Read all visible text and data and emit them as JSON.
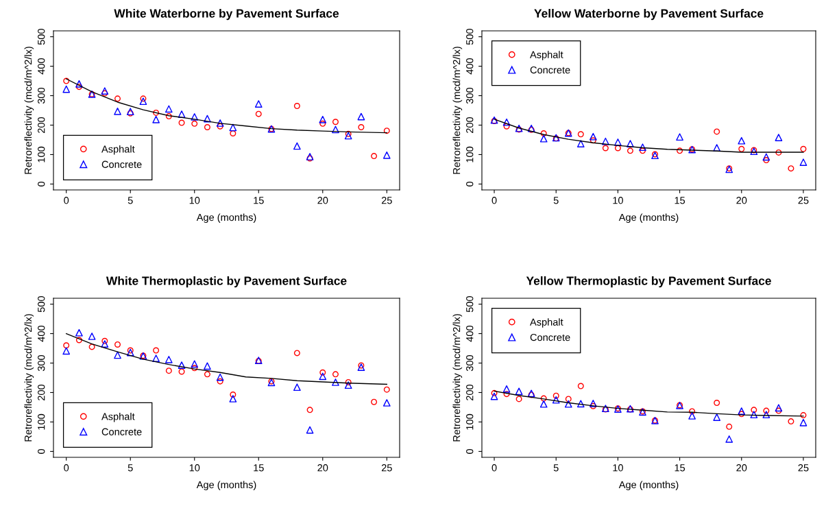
{
  "chart_data": [
    {
      "type": "scatter",
      "title": "White Waterborne by Pavement Surface",
      "xlabel": "Age (months)",
      "ylabel": "Retroreflectivity (mcd/m^2/lx)",
      "xlim": [
        -1,
        26
      ],
      "ylim": [
        -20,
        520
      ],
      "xticks": [
        0,
        5,
        10,
        15,
        20,
        25
      ],
      "yticks": [
        0,
        100,
        200,
        300,
        400,
        500
      ],
      "grid": false,
      "legend": "bottom left",
      "series": [
        {
          "name": "Asphalt",
          "marker": "circle",
          "color": "#ff0000",
          "x": [
            0,
            1,
            2,
            3,
            4,
            5,
            6,
            7,
            8,
            9,
            10,
            11,
            12,
            13,
            15,
            16,
            18,
            19,
            20,
            21,
            22,
            23,
            24,
            25
          ],
          "values": [
            350,
            330,
            305,
            308,
            290,
            240,
            290,
            242,
            230,
            208,
            205,
            193,
            196,
            172,
            238,
            187,
            265,
            87,
            205,
            211,
            170,
            193,
            95,
            181
          ]
        },
        {
          "name": "Concrete",
          "marker": "triangle",
          "color": "#0000ff",
          "x": [
            0,
            1,
            2,
            3,
            4,
            5,
            6,
            7,
            8,
            9,
            10,
            11,
            12,
            13,
            15,
            16,
            18,
            19,
            20,
            21,
            22,
            23,
            25
          ],
          "values": [
            322,
            340,
            305,
            316,
            247,
            246,
            281,
            219,
            255,
            237,
            228,
            222,
            207,
            192,
            272,
            187,
            129,
            93,
            219,
            185,
            164,
            229,
            98
          ]
        },
        {
          "type": "line",
          "marker": "none",
          "line_style": "solid",
          "color": "#000000",
          "x": [
            0,
            2,
            4,
            6,
            8,
            10,
            12,
            14,
            16,
            18,
            20,
            22,
            25
          ],
          "values": [
            357,
            313,
            278,
            252,
            232,
            220,
            206,
            197,
            188,
            183,
            180,
            177,
            174
          ]
        }
      ]
    },
    {
      "type": "scatter",
      "title": "Yellow Waterborne by Pavement Surface",
      "xlabel": "Age (months)",
      "ylabel": "Retroreflectivity (mcd/m^2/lx)",
      "xlim": [
        -1,
        26
      ],
      "ylim": [
        -20,
        520
      ],
      "xticks": [
        0,
        5,
        10,
        15,
        20,
        25
      ],
      "yticks": [
        0,
        100,
        200,
        300,
        400,
        500
      ],
      "grid": false,
      "legend": "top left",
      "series": [
        {
          "name": "Asphalt",
          "marker": "circle",
          "color": "#ff0000",
          "x": [
            0,
            1,
            2,
            3,
            4,
            5,
            6,
            7,
            8,
            9,
            10,
            11,
            12,
            13,
            15,
            16,
            18,
            19,
            20,
            21,
            22,
            23,
            24,
            25
          ],
          "values": [
            214,
            196,
            185,
            184,
            172,
            155,
            173,
            169,
            148,
            122,
            122,
            113,
            113,
            101,
            113,
            118,
            178,
            53,
            119,
            115,
            81,
            107,
            53,
            119
          ]
        },
        {
          "name": "Concrete",
          "marker": "triangle",
          "color": "#0000ff",
          "x": [
            0,
            1,
            2,
            3,
            4,
            5,
            6,
            7,
            8,
            9,
            10,
            11,
            12,
            13,
            15,
            16,
            18,
            19,
            20,
            21,
            22,
            23,
            25
          ],
          "values": [
            217,
            210,
            189,
            189,
            154,
            157,
            173,
            137,
            161,
            145,
            142,
            137,
            125,
            97,
            160,
            117,
            123,
            50,
            147,
            111,
            92,
            158,
            74
          ]
        },
        {
          "type": "line",
          "marker": "none",
          "line_style": "solid",
          "color": "#000000",
          "x": [
            0,
            2,
            4,
            6,
            8,
            10,
            12,
            14,
            16,
            18,
            20,
            22,
            25
          ],
          "values": [
            220,
            190,
            168,
            152,
            140,
            131,
            123,
            118,
            115,
            112,
            108,
            108,
            108
          ]
        }
      ]
    },
    {
      "type": "scatter",
      "title": "White Thermoplastic by Pavement Surface",
      "xlabel": "Age (months)",
      "ylabel": "Retroreflectivity (mcd/m^2/lx)",
      "xlim": [
        -1,
        26
      ],
      "ylim": [
        -20,
        520
      ],
      "xticks": [
        0,
        5,
        10,
        15,
        20,
        25
      ],
      "yticks": [
        0,
        100,
        200,
        300,
        400,
        500
      ],
      "grid": false,
      "legend": "bottom left",
      "series": [
        {
          "name": "Asphalt",
          "marker": "circle",
          "color": "#ff0000",
          "x": [
            0,
            1,
            2,
            3,
            4,
            5,
            6,
            7,
            8,
            9,
            10,
            11,
            12,
            13,
            15,
            16,
            18,
            19,
            20,
            21,
            22,
            23,
            24,
            25
          ],
          "values": [
            360,
            378,
            355,
            375,
            363,
            343,
            325,
            343,
            274,
            271,
            283,
            262,
            238,
            193,
            307,
            238,
            334,
            141,
            268,
            262,
            235,
            292,
            168,
            210
          ]
        },
        {
          "name": "Concrete",
          "marker": "triangle",
          "color": "#0000ff",
          "x": [
            0,
            1,
            2,
            3,
            4,
            5,
            6,
            7,
            8,
            9,
            10,
            11,
            12,
            13,
            15,
            16,
            18,
            19,
            20,
            21,
            22,
            23,
            25
          ],
          "values": [
            341,
            403,
            391,
            365,
            327,
            336,
            324,
            316,
            312,
            293,
            297,
            290,
            252,
            179,
            309,
            234,
            218,
            73,
            255,
            235,
            225,
            286,
            165
          ]
        },
        {
          "type": "line",
          "marker": "none",
          "line_style": "solid",
          "color": "#000000",
          "x": [
            0,
            2,
            4,
            6,
            8,
            10,
            12,
            14,
            16,
            18,
            20,
            22,
            25
          ],
          "values": [
            400,
            365,
            338,
            313,
            295,
            280,
            268,
            253,
            248,
            240,
            236,
            232,
            228
          ]
        }
      ]
    },
    {
      "type": "scatter",
      "title": "Yellow Thermoplastic by Pavement Surface",
      "xlabel": "Age (months)",
      "ylabel": "Retroreflectivity (mcd/m^2/lx)",
      "xlim": [
        -1,
        26
      ],
      "ylim": [
        -20,
        520
      ],
      "xticks": [
        0,
        5,
        10,
        15,
        20,
        25
      ],
      "yticks": [
        0,
        100,
        200,
        300,
        400,
        500
      ],
      "grid": false,
      "legend": "top left",
      "series": [
        {
          "name": "Asphalt",
          "marker": "circle",
          "color": "#ff0000",
          "x": [
            0,
            1,
            2,
            3,
            4,
            5,
            6,
            7,
            8,
            9,
            10,
            11,
            12,
            13,
            15,
            16,
            18,
            19,
            20,
            21,
            22,
            23,
            24,
            25
          ],
          "values": [
            198,
            195,
            178,
            192,
            180,
            189,
            178,
            222,
            154,
            143,
            146,
            143,
            136,
            105,
            157,
            136,
            165,
            84,
            127,
            141,
            138,
            138,
            102,
            123
          ]
        },
        {
          "name": "Concrete",
          "marker": "triangle",
          "color": "#0000ff",
          "x": [
            0,
            1,
            2,
            3,
            4,
            5,
            6,
            7,
            8,
            9,
            10,
            11,
            12,
            13,
            15,
            16,
            18,
            19,
            20,
            21,
            22,
            23,
            25
          ],
          "values": [
            187,
            212,
            204,
            197,
            161,
            175,
            161,
            162,
            163,
            146,
            144,
            145,
            134,
            105,
            156,
            121,
            116,
            42,
            137,
            125,
            125,
            148,
            98
          ]
        },
        {
          "type": "line",
          "marker": "none",
          "line_style": "solid",
          "color": "#000000",
          "x": [
            0,
            2,
            4,
            6,
            8,
            10,
            12,
            14,
            16,
            18,
            20,
            22,
            25
          ],
          "values": [
            205,
            190,
            178,
            165,
            155,
            146,
            140,
            134,
            133,
            128,
            124,
            122,
            120
          ]
        }
      ]
    }
  ]
}
